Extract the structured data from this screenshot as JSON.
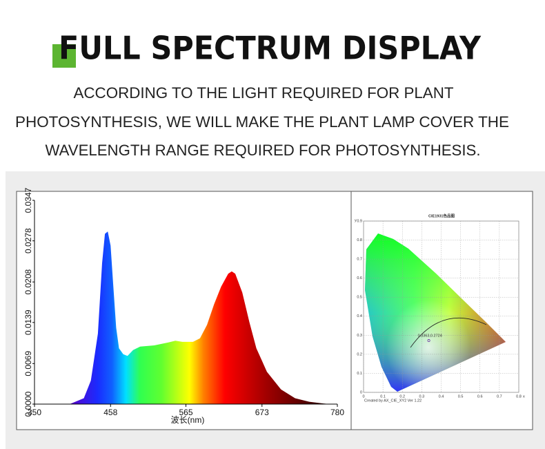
{
  "header": {
    "title": "FULL SPECTRUM DISPLAY",
    "description": [
      "ACCORDING TO THE LIGHT REQUIRED FOR PLANT",
      "PHOTOSYNTHESIS, WE WILL MAKE THE PLANT LAMP COVER THE",
      "WAVELENGTH RANGE REQUIRED FOR PHOTOSYNTHESIS."
    ]
  },
  "chart_data": [
    {
      "type": "area",
      "xlabel": "波长(nm)",
      "x": [
        400,
        420,
        430,
        440,
        446,
        450,
        454,
        458,
        462,
        466,
        470,
        476,
        482,
        490,
        500,
        520,
        540,
        550,
        560,
        575,
        585,
        595,
        605,
        615,
        625,
        630,
        635,
        645,
        655,
        665,
        680,
        700,
        720,
        740,
        760,
        770
      ],
      "values": [
        0,
        0.001,
        0.004,
        0.012,
        0.024,
        0.029,
        0.0294,
        0.027,
        0.02,
        0.013,
        0.0095,
        0.0085,
        0.0082,
        0.0092,
        0.0098,
        0.01,
        0.0105,
        0.0108,
        0.0106,
        0.0106,
        0.0112,
        0.0135,
        0.017,
        0.02,
        0.0222,
        0.0226,
        0.0222,
        0.019,
        0.014,
        0.0095,
        0.0055,
        0.0025,
        0.001,
        0.0004,
        0.0001,
        0
      ],
      "xlim": [
        350,
        780
      ],
      "ylim": [
        0,
        0.0347
      ],
      "xticks": [
        350,
        458,
        565,
        673,
        780
      ],
      "yticks": [
        {
          "value": 0,
          "label": "0.0000"
        },
        {
          "value": 0.0069,
          "label": "0.0069"
        },
        {
          "value": 0.0139,
          "label": "0.0139"
        },
        {
          "value": 0.0208,
          "label": "0.0208"
        },
        {
          "value": 0.0278,
          "label": "0.0278"
        },
        {
          "value": 0.0347,
          "label": "0.0347"
        }
      ]
    },
    {
      "type": "scatter",
      "title": "CIE1931色品图",
      "xlabel": "x",
      "ylabel": "y",
      "x": [
        0.3363
      ],
      "values": [
        0.2724
      ],
      "value_labels": [
        "0.3363,0.2724"
      ],
      "xlim": [
        0,
        0.8
      ],
      "ylim": [
        0,
        0.9
      ],
      "xticks": [
        0,
        0.1,
        0.2,
        0.3,
        0.4,
        0.5,
        0.6,
        0.7,
        0.8
      ],
      "yticks": [
        0,
        0.1,
        0.2,
        0.3,
        0.4,
        0.5,
        0.6,
        0.7,
        0.8,
        0.9
      ],
      "footer": "Created by AX_CIE_XY2 Ver 1.22"
    }
  ]
}
